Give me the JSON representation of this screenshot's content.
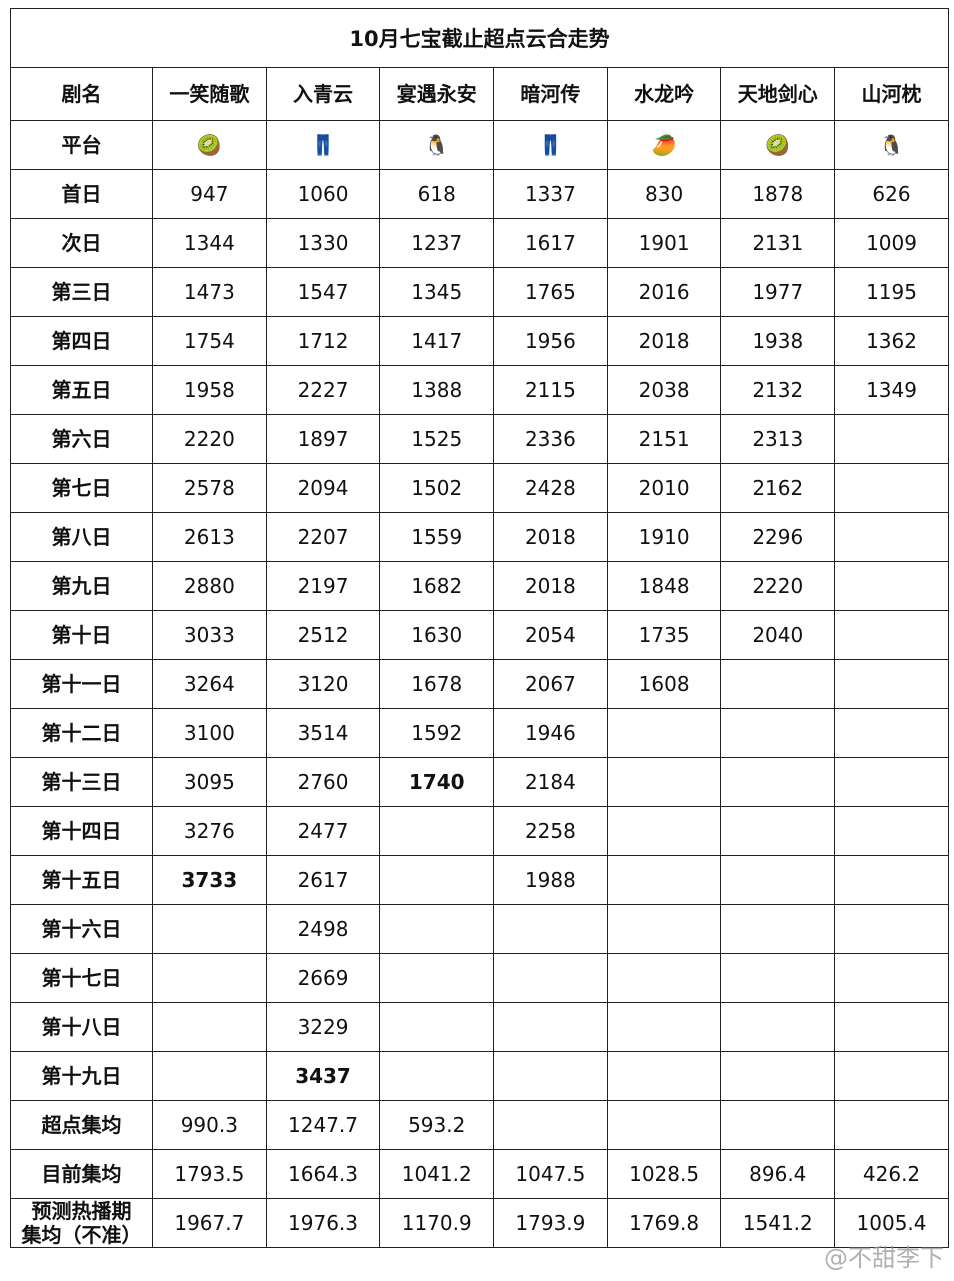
{
  "title": "10月七宝截止超点云合走势",
  "table": {
    "header": [
      "剧名",
      "一笑随歌",
      "入青云",
      "宴遇永安",
      "暗河传",
      "水龙吟",
      "天地剑心",
      "山河枕"
    ],
    "rows": [
      {
        "label": "平台",
        "cells": [
          "🥝",
          "👖",
          "🐧",
          "👖",
          "🥭",
          "🥝",
          "🐧"
        ]
      },
      {
        "label": "首日",
        "cells": [
          "947",
          "1060",
          "618",
          "1337",
          "830",
          "1878",
          "626"
        ]
      },
      {
        "label": "次日",
        "cells": [
          "1344",
          "1330",
          "1237",
          "1617",
          "1901",
          "2131",
          "1009"
        ]
      },
      {
        "label": "第三日",
        "cells": [
          "1473",
          "1547",
          "1345",
          "1765",
          "2016",
          "1977",
          "1195"
        ]
      },
      {
        "label": "第四日",
        "cells": [
          "1754",
          "1712",
          "1417",
          "1956",
          "2018",
          "1938",
          "1362"
        ]
      },
      {
        "label": "第五日",
        "cells": [
          "1958",
          "2227",
          "1388",
          "2115",
          "2038",
          "2132",
          "1349"
        ]
      },
      {
        "label": "第六日",
        "cells": [
          "2220",
          "1897",
          "1525",
          "2336",
          "2151",
          "2313",
          null
        ]
      },
      {
        "label": "第七日",
        "cells": [
          "2578",
          "2094",
          "1502",
          "2428",
          "2010",
          "2162",
          null
        ]
      },
      {
        "label": "第八日",
        "cells": [
          "2613",
          "2207",
          "1559",
          "2018",
          "1910",
          "2296",
          null
        ]
      },
      {
        "label": "第九日",
        "cells": [
          "2880",
          "2197",
          "1682",
          "2018",
          "1848",
          "2220",
          null
        ]
      },
      {
        "label": "第十日",
        "cells": [
          "3033",
          "2512",
          "1630",
          "2054",
          "1735",
          "2040",
          null
        ]
      },
      {
        "label": "第十一日",
        "cells": [
          "3264",
          "3120",
          "1678",
          "2067",
          "1608",
          null,
          null
        ]
      },
      {
        "label": "第十二日",
        "cells": [
          "3100",
          "3514",
          "1592",
          "1946",
          null,
          null,
          null
        ]
      },
      {
        "label": "第十三日",
        "cells": [
          "3095",
          "2760",
          {
            "text": "1740",
            "bold": true
          },
          "2184",
          null,
          null,
          null
        ]
      },
      {
        "label": "第十四日",
        "cells": [
          "3276",
          "2477",
          null,
          "2258",
          null,
          null,
          null
        ]
      },
      {
        "label": "第十五日",
        "cells": [
          {
            "text": "3733",
            "bold": true
          },
          "2617",
          null,
          "1988",
          null,
          null,
          null
        ]
      },
      {
        "label": "第十六日",
        "cells": [
          null,
          "2498",
          null,
          null,
          null,
          null,
          null
        ]
      },
      {
        "label": "第十七日",
        "cells": [
          null,
          "2669",
          null,
          null,
          null,
          null,
          null
        ]
      },
      {
        "label": "第十八日",
        "cells": [
          null,
          "3229",
          null,
          null,
          null,
          null,
          null
        ]
      },
      {
        "label": "第十九日",
        "cells": [
          null,
          {
            "text": "3437",
            "bold": true
          },
          null,
          null,
          null,
          null,
          null
        ]
      },
      {
        "label": "超点集均",
        "cells": [
          "990.3",
          "1247.7",
          "593.2",
          null,
          null,
          null,
          null
        ]
      },
      {
        "label": "目前集均",
        "cells": [
          "1793.5",
          "1664.3",
          "1041.2",
          "1047.5",
          "1028.5",
          "896.4",
          "426.2"
        ]
      },
      {
        "label": "预测热播期\n集均（不准）",
        "cells": [
          "1967.7",
          "1976.3",
          "1170.9",
          "1793.9",
          "1769.8",
          "1541.2",
          "1005.4"
        ]
      }
    ]
  },
  "watermark": "@不甜李下"
}
